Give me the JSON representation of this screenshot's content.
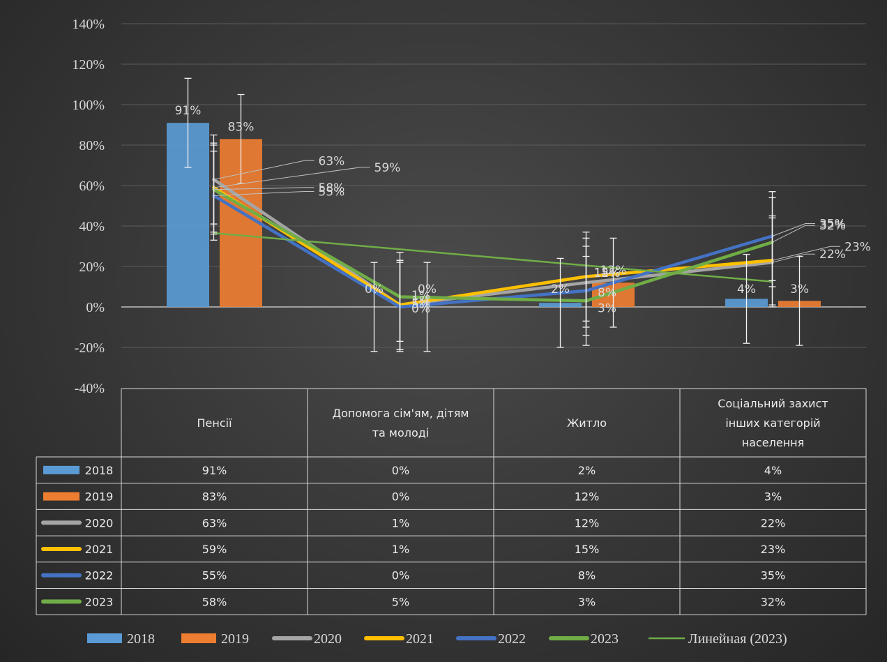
{
  "chart_data": {
    "type": "bar+line",
    "categories": [
      "Пенсії",
      "Допомога сім'ям, дітям та молоді",
      "Житло",
      "Соціальний захист інших категорій населення"
    ],
    "categories_display": [
      [
        "Пенсії"
      ],
      [
        "Допомога сім'ям, дітям",
        "та молоді"
      ],
      [
        "Житло"
      ],
      [
        "Соціальний захист",
        "інших категорій",
        "населення"
      ]
    ],
    "ylim": [
      -40,
      140
    ],
    "yticks": [
      -40,
      -20,
      0,
      20,
      40,
      60,
      80,
      100,
      120,
      140
    ],
    "ytick_labels": [
      "-40%",
      "-20%",
      "0%",
      "20%",
      "40%",
      "60%",
      "80%",
      "100%",
      "120%",
      "140%"
    ],
    "grid": true,
    "error_bars": "±22%",
    "series": [
      {
        "name": "2018",
        "kind": "bar",
        "color": "#5b9bd5",
        "values": [
          91,
          0,
          2,
          4
        ],
        "labels": [
          "91%",
          "0%",
          "2%",
          "4%"
        ]
      },
      {
        "name": "2019",
        "kind": "bar",
        "color": "#ed7d31",
        "values": [
          83,
          0,
          12,
          3
        ],
        "labels": [
          "83%",
          "0%",
          "12%",
          "3%"
        ]
      },
      {
        "name": "2020",
        "kind": "line",
        "color": "#a5a5a5",
        "values": [
          63,
          1,
          12,
          22
        ],
        "labels": [
          "63%",
          "1%",
          "12%",
          "22%"
        ]
      },
      {
        "name": "2021",
        "kind": "line",
        "color": "#ffc000",
        "values": [
          59,
          1,
          15,
          23
        ],
        "labels": [
          "59%",
          "1%",
          "15%",
          "23%"
        ]
      },
      {
        "name": "2022",
        "kind": "line",
        "color": "#4472c4",
        "values": [
          55,
          0,
          8,
          35
        ],
        "labels": [
          "55%",
          "0%",
          "8%",
          "35%"
        ]
      },
      {
        "name": "2023",
        "kind": "line",
        "color": "#70ad47",
        "values": [
          58,
          5,
          3,
          32
        ],
        "labels": [
          "58%",
          "5%",
          "3%",
          "32%"
        ]
      }
    ],
    "trendline": {
      "name": "Линейная (2023)",
      "color": "#70ad47",
      "values": [
        36.5,
        28,
        20.5,
        12.5
      ]
    },
    "table": {
      "rows": [
        {
          "label": "2018",
          "cells": [
            "91%",
            "0%",
            "2%",
            "4%"
          ]
        },
        {
          "label": "2019",
          "cells": [
            "83%",
            "0%",
            "12%",
            "3%"
          ]
        },
        {
          "label": "2020",
          "cells": [
            "63%",
            "1%",
            "12%",
            "22%"
          ]
        },
        {
          "label": "2021",
          "cells": [
            "59%",
            "1%",
            "15%",
            "23%"
          ]
        },
        {
          "label": "2022",
          "cells": [
            "55%",
            "0%",
            "8%",
            "35%"
          ]
        },
        {
          "label": "2023",
          "cells": [
            "58%",
            "5%",
            "3%",
            "32%"
          ]
        }
      ]
    },
    "legend": [
      "2018",
      "2019",
      "2020",
      "2021",
      "2022",
      "2023",
      "Линейная (2023)"
    ],
    "legend_position": "bottom"
  }
}
